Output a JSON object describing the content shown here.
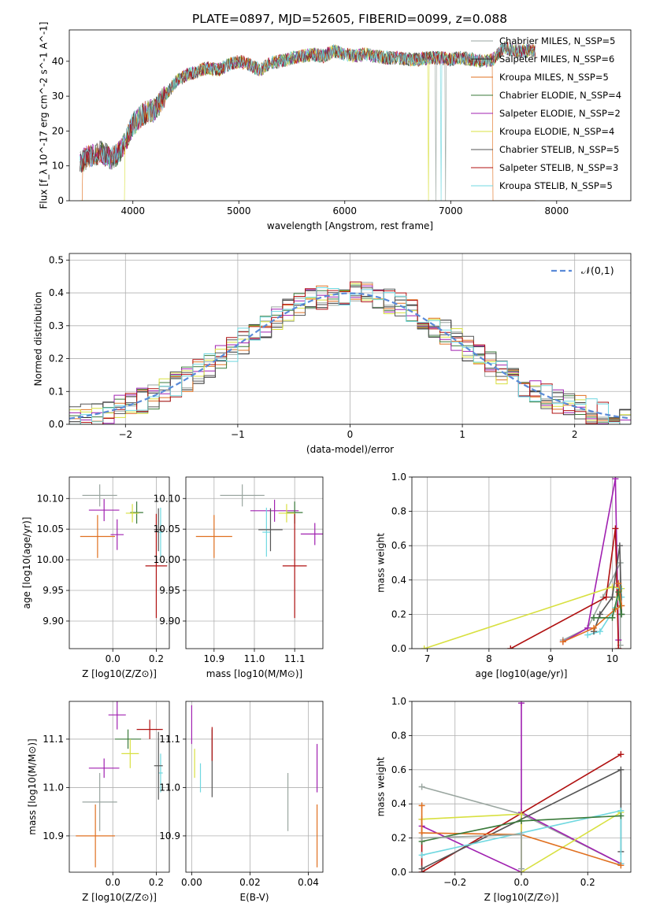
{
  "figure": {
    "title": "PLATE=0897, MJD=52605, FIBERID=0099, z=0.088"
  },
  "series_colors": [
    "#9aa6a0",
    "#2a2a2a",
    "#e07020",
    "#3a7a3a",
    "#a020b0",
    "#d8e040",
    "#555555",
    "#b01010",
    "#70d8e0"
  ],
  "chart_data": [
    {
      "id": "spectrum",
      "type": "line",
      "xlabel": "wavelength [Angstrom, rest frame]",
      "ylabel": "Flux [f_λ 10^-17 erg cm^-2 s^-1 A^-1]",
      "xlim": [
        3400,
        8700
      ],
      "ylim": [
        0,
        49
      ],
      "xticks": [
        4000,
        5000,
        6000,
        7000,
        8000
      ],
      "yticks": [
        0,
        10,
        20,
        30,
        40
      ],
      "grid": false,
      "legend_position": "top-right",
      "legend": [
        "Chabrier MILES, N_SSP=5",
        "Salpeter MILES, N_SSP=6",
        "Kroupa MILES, N_SSP=5",
        "Chabrier ELODIE, N_SSP=4",
        "Salpeter ELODIE, N_SSP=2",
        "Kroupa ELODIE, N_SSP=4",
        "Chabrier STELIB, N_SSP=5",
        "Salpeter STELIB, N_SSP=3",
        "Kroupa STELIB, N_SSP=5"
      ],
      "continuum": {
        "x": [
          3500,
          3600,
          3700,
          3800,
          3900,
          4000,
          4100,
          4200,
          4300,
          4400,
          4500,
          4600,
          4700,
          4800,
          4900,
          5000,
          5100,
          5200,
          5300,
          5400,
          5500,
          5600,
          5700,
          5800,
          5900,
          6000,
          6100,
          6200,
          6300,
          6400,
          6500,
          6600,
          6700,
          6800,
          6900,
          7000,
          7100,
          7200,
          7300,
          7400,
          7500,
          7600,
          7700,
          7800
        ],
        "y": [
          11,
          13,
          14,
          12,
          15,
          22,
          25,
          26,
          30,
          34,
          36,
          37,
          38,
          37.5,
          39,
          40,
          39,
          37.5,
          39.5,
          40,
          41,
          41.5,
          42,
          41.5,
          43,
          42,
          41.5,
          42,
          41.5,
          41,
          41,
          40.5,
          40.5,
          41,
          41,
          40.5,
          41,
          40.5,
          40,
          40.5,
          44,
          43,
          43,
          43
        ]
      },
      "dropouts": [
        {
          "series": 2,
          "x": 3520
        },
        {
          "series": 5,
          "x": 3920
        },
        {
          "series": 5,
          "x": 6790
        },
        {
          "series": 0,
          "x": 6860
        },
        {
          "series": 8,
          "x": 6910
        },
        {
          "series": 0,
          "x": 6950
        },
        {
          "series": 2,
          "x": 7400
        }
      ]
    },
    {
      "id": "residuals",
      "type": "histogram",
      "xlabel": "(data-model)/error",
      "ylabel": "Normed distribution",
      "xlim": [
        -2.5,
        2.5
      ],
      "ylim": [
        0,
        0.52
      ],
      "xticks": [
        -2,
        -1,
        0,
        1,
        2
      ],
      "yticks": [
        0,
        0.1,
        0.2,
        0.3,
        0.4,
        0.5
      ],
      "grid": true,
      "legend_position": "top-right",
      "legend": [
        "𝒩(0,1)"
      ],
      "reference_curve": {
        "name": "𝒩(0,1)",
        "color": "#5a8ad8"
      },
      "bin_width": 0.1
    },
    {
      "id": "age_vs_Z",
      "type": "scatter",
      "xlabel": "Z [log10(Z/Z⊙)]",
      "ylabel": "age  [log10(age/yr)]",
      "xlim": [
        -0.2,
        0.26
      ],
      "ylim": [
        9.855,
        10.135
      ],
      "xticks": [
        0.0,
        0.2
      ],
      "yticks": [
        9.9,
        9.95,
        10.0,
        10.05,
        10.1
      ],
      "grid": true,
      "points": [
        {
          "series": 0,
          "x": -0.06,
          "y": 10.105,
          "xerr": 0.08,
          "yerr": 0.018
        },
        {
          "series": 2,
          "x": -0.07,
          "y": 10.038,
          "xerr": 0.08,
          "yerr": 0.035
        },
        {
          "series": 4,
          "x": 0.02,
          "y": 10.041,
          "xerr": 0.03,
          "yerr": 0.025
        },
        {
          "series": 3,
          "x": 0.11,
          "y": 10.077,
          "xerr": 0.03,
          "yerr": 0.018
        },
        {
          "series": 5,
          "x": 0.09,
          "y": 10.076,
          "xerr": 0.03,
          "yerr": 0.015
        },
        {
          "series": 8,
          "x": 0.22,
          "y": 10.045,
          "xerr": 0.01,
          "yerr": 0.04
        },
        {
          "series": 6,
          "x": 0.21,
          "y": 10.049,
          "xerr": 0.02,
          "yerr": 0.035
        },
        {
          "series": 7,
          "x": 0.2,
          "y": 9.99,
          "xerr": 0.05,
          "yerr": 0.085
        },
        {
          "series": 4,
          "x": -0.04,
          "y": 10.081,
          "xerr": 0.07,
          "yerr": 0.018
        }
      ]
    },
    {
      "id": "age_vs_mass",
      "type": "scatter",
      "xlabel": "mass [log10(M/M⊙)]",
      "ylabel": "",
      "xlim": [
        10.83,
        11.17
      ],
      "ylim": [
        9.855,
        10.135
      ],
      "xticks": [
        10.9,
        11.0,
        11.1
      ],
      "yticks": [
        9.9,
        9.95,
        10.0,
        10.05,
        10.1
      ],
      "grid": true,
      "points": [
        {
          "series": 0,
          "x": 10.97,
          "y": 10.105,
          "xerr": 0.055,
          "yerr": 0.018
        },
        {
          "series": 2,
          "x": 10.9,
          "y": 10.038,
          "xerr": 0.045,
          "yerr": 0.035
        },
        {
          "series": 4,
          "x": 11.05,
          "y": 10.08,
          "xerr": 0.06,
          "yerr": 0.018
        },
        {
          "series": 3,
          "x": 11.1,
          "y": 10.077,
          "xerr": 0.02,
          "yerr": 0.018
        },
        {
          "series": 5,
          "x": 11.08,
          "y": 10.076,
          "xerr": 0.02,
          "yerr": 0.015
        },
        {
          "series": 8,
          "x": 11.03,
          "y": 10.045,
          "xerr": 0.01,
          "yerr": 0.04
        },
        {
          "series": 6,
          "x": 11.04,
          "y": 10.049,
          "xerr": 0.03,
          "yerr": 0.035
        },
        {
          "series": 7,
          "x": 11.1,
          "y": 9.99,
          "xerr": 0.03,
          "yerr": 0.085
        },
        {
          "series": 4,
          "x": 11.15,
          "y": 10.042,
          "xerr": 0.035,
          "yerr": 0.018
        }
      ]
    },
    {
      "id": "weight_vs_age",
      "type": "line",
      "xlabel": "age  [log10(age/yr)]",
      "ylabel": "mass weight",
      "xlim": [
        6.75,
        10.3
      ],
      "ylim": [
        0,
        1
      ],
      "xticks": [
        7,
        8,
        9,
        10
      ],
      "yticks": [
        0,
        0.2,
        0.4,
        0.6,
        0.8,
        1.0
      ],
      "grid": true,
      "series": [
        {
          "series": 0,
          "points": [
            [
              9.2,
              0.05
            ],
            [
              9.6,
              0.12
            ],
            [
              9.85,
              0.3
            ],
            [
              10.13,
              0.5
            ],
            [
              10.13,
              0.02
            ]
          ]
        },
        {
          "series": 4,
          "points": [
            [
              9.2,
              0.04
            ],
            [
              9.6,
              0.12
            ],
            [
              10.05,
              0.99
            ],
            [
              10.1,
              0.05
            ]
          ]
        },
        {
          "series": 7,
          "points": [
            [
              8.35,
              0.0
            ],
            [
              9.9,
              0.3
            ],
            [
              10.05,
              0.7
            ],
            [
              10.1,
              0.0
            ]
          ]
        },
        {
          "series": 5,
          "points": [
            [
              6.95,
              0.0
            ],
            [
              10.0,
              0.36
            ],
            [
              10.15,
              0.35
            ],
            [
              10.1,
              0.3
            ]
          ]
        },
        {
          "series": 8,
          "points": [
            [
              9.6,
              0.08
            ],
            [
              9.8,
              0.1
            ],
            [
              10.05,
              0.24
            ],
            [
              10.12,
              0.35
            ],
            [
              10.15,
              0.3
            ]
          ]
        },
        {
          "series": 6,
          "points": [
            [
              9.7,
              0.1
            ],
            [
              9.8,
              0.2
            ],
            [
              10.0,
              0.3
            ],
            [
              10.12,
              0.6
            ],
            [
              10.15,
              0.2
            ]
          ]
        },
        {
          "series": 2,
          "points": [
            [
              9.2,
              0.04
            ],
            [
              9.7,
              0.12
            ],
            [
              10.05,
              0.23
            ],
            [
              10.15,
              0.25
            ],
            [
              10.1,
              0.38
            ]
          ]
        },
        {
          "series": 3,
          "points": [
            [
              9.7,
              0.18
            ],
            [
              10.0,
              0.18
            ],
            [
              10.1,
              0.33
            ],
            [
              10.15,
              0.2
            ]
          ]
        }
      ]
    },
    {
      "id": "mass_vs_Z",
      "type": "scatter",
      "xlabel": "Z [log10(Z/Z⊙)]",
      "ylabel": "mass [log10(M/M⊙)]",
      "xlim": [
        -0.2,
        0.26
      ],
      "ylim": [
        10.825,
        11.178
      ],
      "xticks": [
        0.0,
        0.2
      ],
      "yticks": [
        10.9,
        11.0,
        11.1
      ],
      "grid": true,
      "points": [
        {
          "series": 0,
          "x": -0.06,
          "y": 10.97,
          "xerr": 0.08,
          "yerr": 0.06
        },
        {
          "series": 2,
          "x": -0.08,
          "y": 10.9,
          "xerr": 0.09,
          "yerr": 0.065
        },
        {
          "series": 4,
          "x": 0.02,
          "y": 11.15,
          "xerr": 0.04,
          "yerr": 0.03
        },
        {
          "series": 3,
          "x": 0.07,
          "y": 11.1,
          "xerr": 0.06,
          "yerr": 0.02
        },
        {
          "series": 5,
          "x": 0.08,
          "y": 11.07,
          "xerr": 0.04,
          "yerr": 0.03
        },
        {
          "series": 8,
          "x": 0.22,
          "y": 11.03,
          "xerr": 0.01,
          "yerr": 0.04
        },
        {
          "series": 6,
          "x": 0.21,
          "y": 11.045,
          "xerr": 0.02,
          "yerr": 0.07
        },
        {
          "series": 7,
          "x": 0.17,
          "y": 11.12,
          "xerr": 0.06,
          "yerr": 0.02
        },
        {
          "series": 4,
          "x": -0.04,
          "y": 11.04,
          "xerr": 0.07,
          "yerr": 0.02
        }
      ]
    },
    {
      "id": "mass_vs_EBV",
      "type": "scatter",
      "xlabel": "E(B-V)",
      "ylabel": "",
      "xlim": [
        -0.002,
        0.045
      ],
      "ylim": [
        10.825,
        11.178
      ],
      "xticks": [
        0.0,
        0.02,
        0.04
      ],
      "yticks": [
        10.9,
        11.0,
        11.1
      ],
      "grid": true,
      "points": [
        {
          "series": 0,
          "x": 0.033,
          "y": 10.97,
          "xerr": 0,
          "yerr": 0.06
        },
        {
          "series": 2,
          "x": 0.043,
          "y": 10.9,
          "xerr": 0,
          "yerr": 0.065
        },
        {
          "series": 4,
          "x": 0.0,
          "y": 11.13,
          "xerr": 0,
          "yerr": 0.04
        },
        {
          "series": 5,
          "x": 0.001,
          "y": 11.05,
          "xerr": 0,
          "yerr": 0.03
        },
        {
          "series": 8,
          "x": 0.003,
          "y": 11.02,
          "xerr": 0,
          "yerr": 0.03
        },
        {
          "series": 6,
          "x": 0.007,
          "y": 11.05,
          "xerr": 0,
          "yerr": 0.07
        },
        {
          "series": 7,
          "x": 0.007,
          "y": 11.09,
          "xerr": 0,
          "yerr": 0.035
        },
        {
          "series": 4,
          "x": 0.043,
          "y": 11.04,
          "xerr": 0,
          "yerr": 0.05
        }
      ]
    },
    {
      "id": "weight_vs_Z",
      "type": "line",
      "xlabel": "Z [log10(Z/Z⊙)]",
      "ylabel": "mass weight",
      "xlim": [
        -0.33,
        0.33
      ],
      "ylim": [
        0,
        1
      ],
      "xticks": [
        -0.2,
        0.0,
        0.2
      ],
      "yticks": [
        0,
        0.2,
        0.4,
        0.6,
        0.8,
        1.0
      ],
      "grid": true,
      "series": [
        {
          "series": 0,
          "points": [
            [
              -0.3,
              0.5
            ],
            [
              0.0,
              0.34
            ],
            [
              0.3,
              0.05
            ]
          ]
        },
        {
          "series": 4,
          "points": [
            [
              -0.3,
              0.27
            ],
            [
              0.0,
              0.0
            ],
            [
              0.0,
              0.99
            ],
            [
              0.0,
              0.35
            ],
            [
              0.3,
              0.05
            ]
          ]
        },
        {
          "series": 7,
          "points": [
            [
              -0.3,
              0.31
            ],
            [
              -0.3,
              0.0
            ],
            [
              0.3,
              0.69
            ]
          ]
        },
        {
          "series": 6,
          "points": [
            [
              -0.3,
              0.02
            ],
            [
              0.3,
              0.6
            ],
            [
              0.3,
              0.12
            ]
          ]
        },
        {
          "series": 5,
          "points": [
            [
              -0.3,
              0.31
            ],
            [
              0.0,
              0.34
            ],
            [
              0.0,
              0.0
            ],
            [
              0.3,
              0.35
            ]
          ]
        },
        {
          "series": 8,
          "points": [
            [
              -0.3,
              0.1
            ],
            [
              0.3,
              0.36
            ],
            [
              0.3,
              0.05
            ]
          ]
        },
        {
          "series": 2,
          "points": [
            [
              -0.3,
              0.39
            ],
            [
              -0.3,
              0.23
            ],
            [
              0.0,
              0.22
            ],
            [
              0.3,
              0.04
            ]
          ]
        },
        {
          "series": 3,
          "points": [
            [
              -0.3,
              0.18
            ],
            [
              0.0,
              0.3
            ],
            [
              0.3,
              0.33
            ]
          ]
        },
        {
          "series": 0,
          "points": [
            [
              -0.3,
              0.2
            ],
            [
              0.0,
              0.22
            ],
            [
              0.0,
              0.02
            ]
          ]
        }
      ]
    }
  ]
}
